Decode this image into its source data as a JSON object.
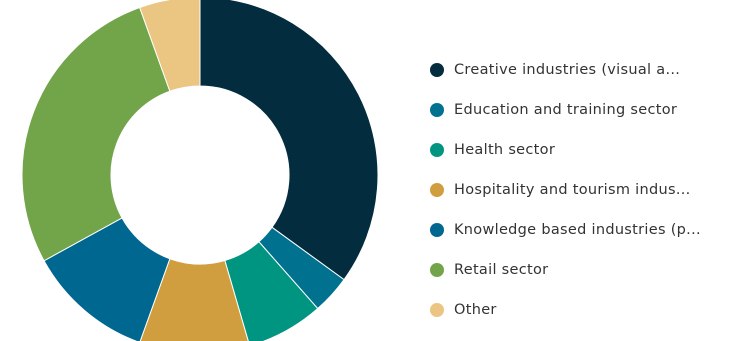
{
  "chart_data": {
    "type": "pie",
    "donut": true,
    "legend_position": "right",
    "categories": [
      "Creative industries (visual a...",
      "Education and training sector",
      "Health sector",
      "Hospitality and tourism indus...",
      "Knowledge based industries (p...",
      "Retail sector",
      "Other"
    ],
    "values": [
      35,
      3.5,
      7,
      10,
      11.5,
      27.5,
      5.5
    ],
    "colors": [
      "#042c3f",
      "#00718f",
      "#009580",
      "#d09e3f",
      "#006791",
      "#72a44a",
      "#ebc582"
    ]
  }
}
